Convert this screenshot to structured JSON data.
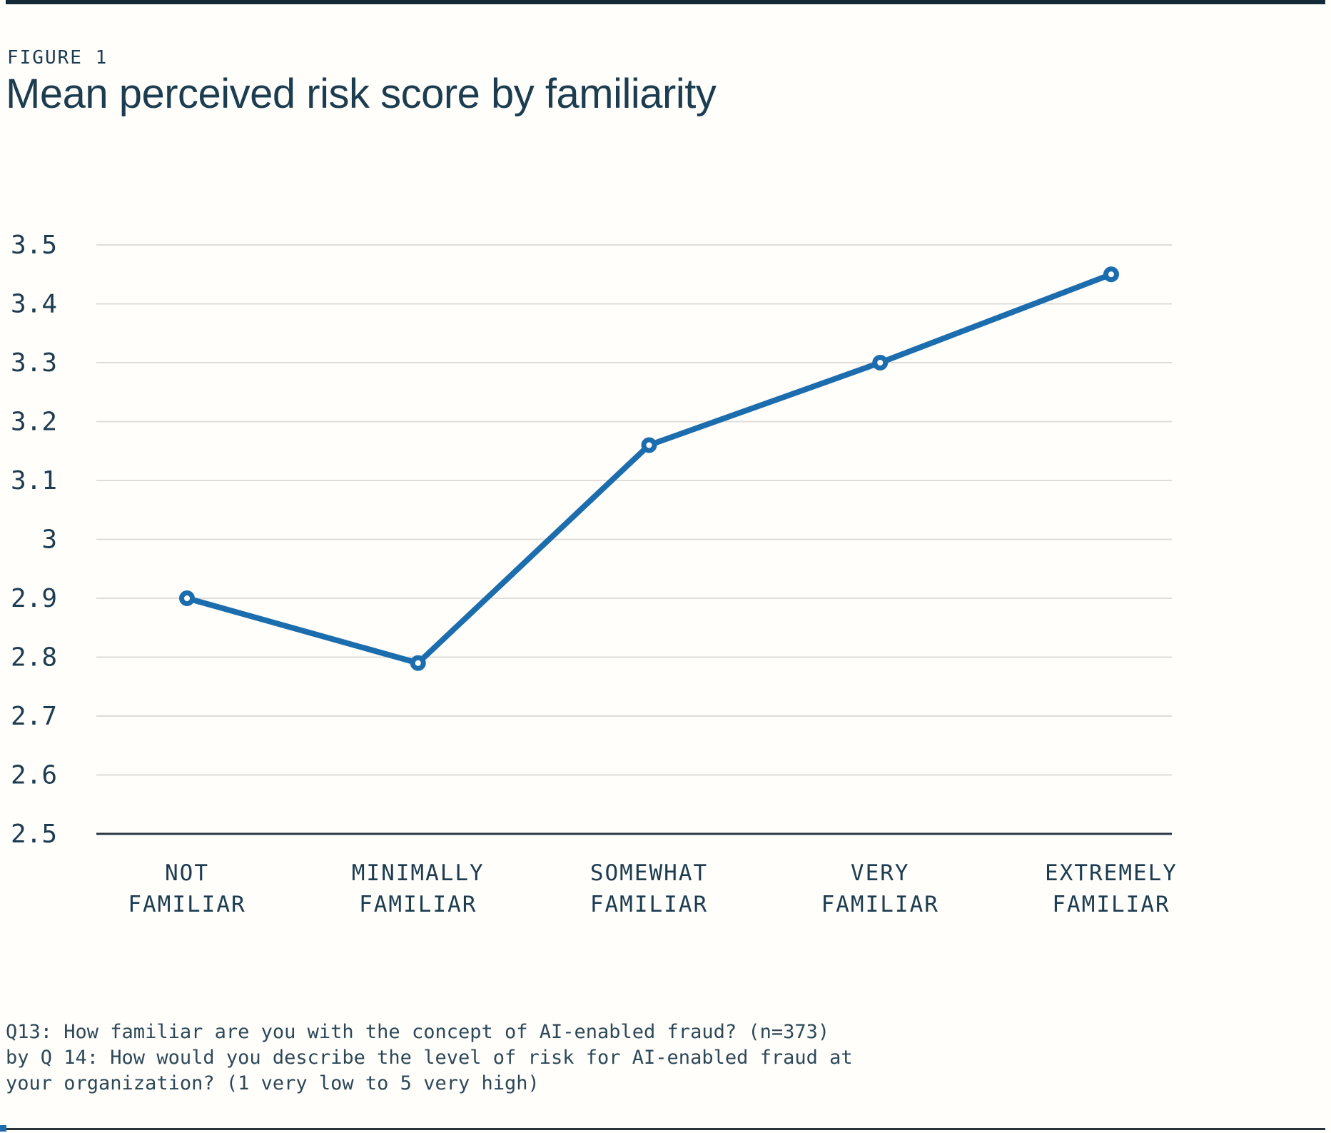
{
  "page": {
    "figure_label": "FIGURE 1",
    "title": "Mean perceived risk score by familiarity",
    "footnote_lines": [
      "Q13: How familiar are you with the concept of AI-enabled fraud? (n=373)",
      "by Q 14: How would you describe the level of risk for AI-enabled fraud at",
      "your organization? (1 very low to 5 very high)"
    ]
  },
  "colors": {
    "accent_blue": "#1c6dae",
    "text_navy": "#1c3c50",
    "footnote_navy": "#2c4857",
    "gridline": "#e0ddd8",
    "axis_line": "#2b3640",
    "top_bar": "#122b37",
    "bottom_rule": "#28333c",
    "background": "#fffefb"
  },
  "chart_data": {
    "type": "line",
    "title": "Mean perceived risk score by familiarity",
    "categories": [
      "NOT FAMILIAR",
      "MINIMALLY FAMILIAR",
      "SOMEWHAT FAMILIAR",
      "VERY FAMILIAR",
      "EXTREMELY FAMILIAR"
    ],
    "category_label_lines": [
      [
        "NOT",
        "FAMILIAR"
      ],
      [
        "MINIMALLY",
        "FAMILIAR"
      ],
      [
        "SOMEWHAT",
        "FAMILIAR"
      ],
      [
        "VERY",
        "FAMILIAR"
      ],
      [
        "EXTREMELY",
        "FAMILIAR"
      ]
    ],
    "series": [
      {
        "name": "Mean perceived risk score",
        "values": [
          2.9,
          2.79,
          3.16,
          3.3,
          3.45
        ]
      }
    ],
    "xlabel": "",
    "ylabel": "",
    "ylim": [
      2.5,
      3.5
    ],
    "yticks": [
      2.5,
      2.6,
      2.7,
      2.8,
      2.9,
      3,
      3.1,
      3.2,
      3.3,
      3.4,
      3.5
    ],
    "ytick_labels": [
      "2.5",
      "2.6",
      "2.7",
      "2.8",
      "2.9",
      "3",
      "3.1",
      "3.2",
      "3.3",
      "3.4",
      "3.5"
    ],
    "grid": true,
    "legend": "none",
    "marker": "open-circle",
    "line_color": "#1c6dae"
  }
}
